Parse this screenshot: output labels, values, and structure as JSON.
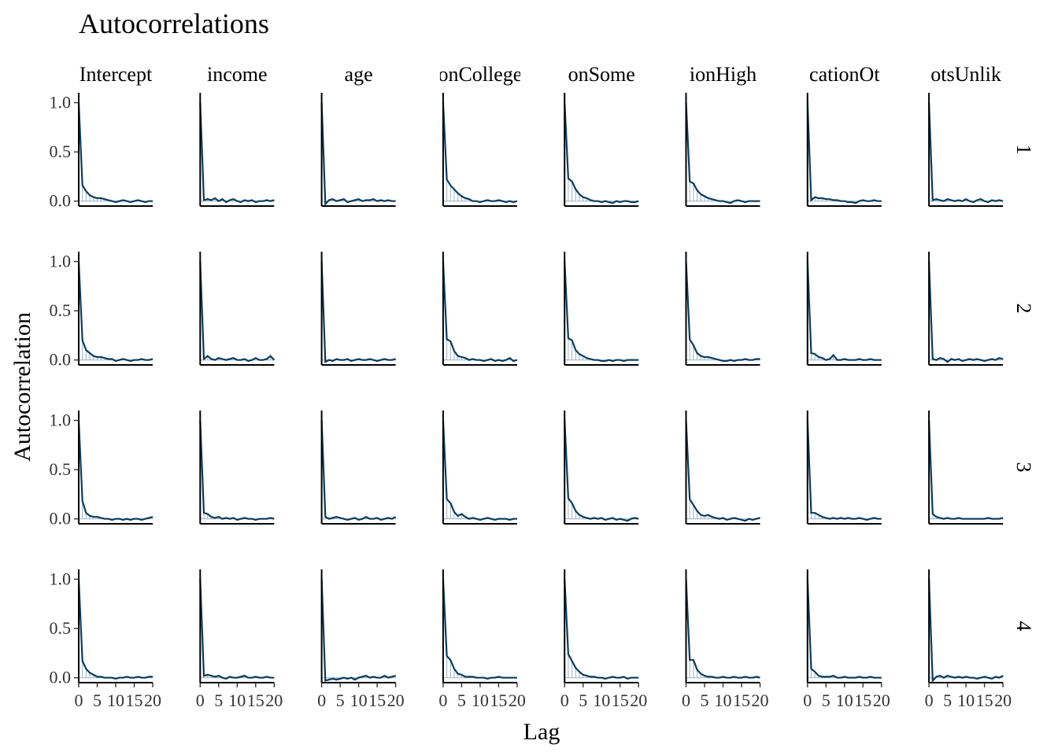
{
  "chart_data": {
    "type": "line",
    "title": "Autocorrelations",
    "xlabel": "Lag",
    "ylabel": "Autocorrelation",
    "xlim": [
      0,
      20
    ],
    "ylim": [
      -0.05,
      1.1
    ],
    "x_ticks": [
      0,
      5,
      10,
      15,
      20
    ],
    "x_tick_labels": [
      "0",
      "5",
      "10",
      "15",
      "20"
    ],
    "y_ticks": [
      0.0,
      0.5,
      1.0
    ],
    "y_tick_labels": [
      "0.0",
      "0.5",
      "1.0"
    ],
    "column_strips": [
      "Intercept",
      "income",
      "age",
      "onCollege",
      "onSome",
      "ionHigh",
      "cationOt",
      "otsUnlik"
    ],
    "row_strips": [
      "1",
      "2",
      "3",
      "4"
    ],
    "lags": [
      0,
      1,
      2,
      3,
      4,
      5,
      6,
      7,
      8,
      9,
      10,
      11,
      12,
      13,
      14,
      15,
      16,
      17,
      18,
      19,
      20
    ],
    "bar_color": "#9bb3c9",
    "line_color": "#0b3c5d",
    "panels": [
      [
        {
          "values": [
            1.0,
            0.16,
            0.1,
            0.06,
            0.04,
            0.03,
            0.03,
            0.02,
            0.01,
            0.0,
            -0.01,
            0.0,
            0.01,
            0.0,
            -0.01,
            0.0,
            0.01,
            0.0,
            -0.01,
            0.0,
            0.0
          ]
        },
        {
          "values": [
            1.0,
            0.01,
            0.02,
            0.01,
            0.03,
            0.0,
            0.02,
            -0.01,
            0.01,
            0.02,
            0.0,
            -0.01,
            0.01,
            0.0,
            0.01,
            -0.01,
            0.0,
            0.0,
            0.01,
            0.0,
            0.01
          ]
        },
        {
          "values": [
            1.0,
            -0.03,
            0.01,
            0.02,
            0.0,
            0.01,
            0.02,
            -0.01,
            0.0,
            0.01,
            0.02,
            0.0,
            0.01,
            0.01,
            0.02,
            0.0,
            0.01,
            0.0,
            0.01,
            0.0,
            0.0
          ]
        },
        {
          "values": [
            1.0,
            0.22,
            0.16,
            0.12,
            0.08,
            0.05,
            0.03,
            0.02,
            0.0,
            0.0,
            -0.01,
            0.0,
            0.01,
            0.0,
            0.0,
            0.01,
            0.0,
            -0.01,
            0.0,
            -0.01,
            0.0
          ]
        },
        {
          "values": [
            1.0,
            0.23,
            0.2,
            0.12,
            0.07,
            0.04,
            0.03,
            0.01,
            0.0,
            0.0,
            -0.01,
            0.0,
            -0.01,
            -0.02,
            0.0,
            -0.01,
            0.0,
            0.0,
            -0.01,
            -0.01,
            0.0
          ]
        },
        {
          "values": [
            1.0,
            0.2,
            0.18,
            0.11,
            0.07,
            0.05,
            0.03,
            0.02,
            0.01,
            0.0,
            0.0,
            -0.01,
            -0.02,
            0.0,
            0.01,
            0.0,
            -0.01,
            0.0,
            0.0,
            0.0,
            0.0
          ]
        },
        {
          "values": [
            1.0,
            0.01,
            0.04,
            0.03,
            0.03,
            0.02,
            0.02,
            0.01,
            0.01,
            0.0,
            0.0,
            -0.01,
            -0.01,
            -0.02,
            0.0,
            0.01,
            0.0,
            0.0,
            0.01,
            0.0,
            0.0
          ]
        },
        {
          "values": [
            1.0,
            0.01,
            0.02,
            0.01,
            0.0,
            0.02,
            0.01,
            0.0,
            0.01,
            0.0,
            0.02,
            0.0,
            -0.01,
            0.01,
            0.02,
            0.0,
            -0.01,
            0.01,
            0.0,
            0.01,
            0.0
          ]
        }
      ],
      [
        {
          "values": [
            1.0,
            0.2,
            0.1,
            0.07,
            0.04,
            0.03,
            0.03,
            0.02,
            0.01,
            0.01,
            -0.01,
            0.0,
            0.01,
            0.0,
            -0.01,
            0.0,
            0.0,
            0.01,
            0.0,
            0.0,
            0.01
          ]
        },
        {
          "values": [
            1.0,
            0.01,
            0.04,
            0.01,
            0.0,
            0.02,
            0.01,
            0.0,
            0.01,
            0.02,
            0.0,
            0.0,
            0.01,
            -0.01,
            0.0,
            0.02,
            0.0,
            0.0,
            0.01,
            0.04,
            0.0
          ]
        },
        {
          "values": [
            1.0,
            -0.02,
            0.0,
            -0.01,
            0.01,
            0.0,
            0.0,
            0.01,
            -0.01,
            0.0,
            0.01,
            0.0,
            0.0,
            0.01,
            0.0,
            -0.01,
            0.0,
            0.01,
            0.0,
            0.0,
            0.01
          ]
        },
        {
          "values": [
            1.0,
            0.21,
            0.19,
            0.09,
            0.04,
            0.03,
            0.02,
            0.0,
            0.01,
            0.0,
            0.0,
            -0.01,
            0.0,
            0.01,
            -0.01,
            0.0,
            -0.01,
            0.0,
            0.02,
            -0.01,
            0.0
          ]
        },
        {
          "values": [
            1.0,
            0.22,
            0.2,
            0.1,
            0.06,
            0.04,
            0.02,
            0.01,
            0.0,
            0.0,
            -0.01,
            -0.01,
            0.0,
            -0.01,
            0.0,
            0.0,
            -0.01,
            0.0,
            0.0,
            0.0,
            0.0
          ]
        },
        {
          "values": [
            1.0,
            0.21,
            0.15,
            0.07,
            0.04,
            0.03,
            0.03,
            0.02,
            0.01,
            0.0,
            -0.01,
            -0.01,
            0.0,
            -0.01,
            0.0,
            0.0,
            0.01,
            0.0,
            0.0,
            0.01,
            0.01
          ]
        },
        {
          "values": [
            1.0,
            0.07,
            0.06,
            0.03,
            0.02,
            0.0,
            0.01,
            0.05,
            0.0,
            0.0,
            0.01,
            0.0,
            0.0,
            0.0,
            0.01,
            0.0,
            0.0,
            0.01,
            0.0,
            0.0,
            0.0
          ]
        },
        {
          "values": [
            1.0,
            0.01,
            0.0,
            0.02,
            0.01,
            -0.02,
            0.01,
            0.0,
            0.01,
            -0.01,
            0.0,
            0.01,
            0.0,
            0.01,
            0.0,
            -0.01,
            0.0,
            0.01,
            0.0,
            0.02,
            0.01
          ]
        }
      ],
      [
        {
          "values": [
            1.0,
            0.18,
            0.06,
            0.03,
            0.02,
            0.02,
            0.01,
            0.0,
            0.0,
            -0.01,
            0.0,
            0.0,
            -0.01,
            0.0,
            -0.01,
            0.0,
            0.0,
            -0.01,
            0.0,
            0.01,
            0.02
          ]
        },
        {
          "values": [
            1.0,
            0.06,
            0.05,
            0.02,
            0.01,
            0.02,
            0.0,
            0.01,
            0.0,
            0.01,
            -0.01,
            0.0,
            0.01,
            0.0,
            0.0,
            -0.01,
            0.0,
            0.0,
            0.0,
            0.01,
            0.0
          ]
        },
        {
          "values": [
            1.0,
            0.02,
            0.0,
            0.01,
            0.02,
            0.01,
            0.0,
            -0.01,
            0.0,
            0.01,
            -0.01,
            0.0,
            0.02,
            0.0,
            0.0,
            0.01,
            -0.01,
            0.0,
            0.01,
            0.0,
            0.02
          ]
        },
        {
          "values": [
            1.0,
            0.2,
            0.16,
            0.07,
            0.03,
            0.05,
            0.02,
            0.0,
            0.01,
            0.0,
            -0.01,
            0.0,
            0.01,
            0.0,
            -0.01,
            0.0,
            0.0,
            0.0,
            -0.01,
            0.0,
            0.0
          ]
        },
        {
          "values": [
            1.0,
            0.21,
            0.16,
            0.08,
            0.04,
            0.02,
            0.01,
            0.0,
            0.01,
            0.0,
            0.01,
            -0.01,
            0.0,
            0.01,
            -0.01,
            0.0,
            -0.01,
            -0.02,
            0.0,
            0.01,
            0.0
          ]
        },
        {
          "values": [
            1.0,
            0.2,
            0.14,
            0.08,
            0.04,
            0.03,
            0.04,
            0.02,
            0.01,
            0.0,
            0.01,
            -0.01,
            0.0,
            0.01,
            0.0,
            -0.01,
            -0.02,
            0.0,
            -0.01,
            0.0,
            0.01
          ]
        },
        {
          "values": [
            1.0,
            0.06,
            0.06,
            0.04,
            0.02,
            0.01,
            0.0,
            0.01,
            0.0,
            0.01,
            0.0,
            0.01,
            0.0,
            0.0,
            0.01,
            0.0,
            -0.01,
            0.0,
            0.01,
            0.0,
            0.0
          ]
        },
        {
          "values": [
            1.0,
            0.05,
            0.02,
            0.01,
            0.0,
            0.01,
            0.0,
            0.0,
            0.01,
            0.0,
            0.0,
            0.0,
            0.0,
            0.0,
            0.0,
            0.0,
            0.01,
            0.0,
            0.0,
            0.0,
            0.01
          ]
        }
      ],
      [
        {
          "values": [
            1.0,
            0.17,
            0.09,
            0.05,
            0.03,
            0.01,
            0.01,
            0.0,
            0.0,
            0.0,
            -0.01,
            0.0,
            0.0,
            0.01,
            0.0,
            0.0,
            0.01,
            0.0,
            0.0,
            0.01,
            0.01
          ]
        },
        {
          "values": [
            1.0,
            0.02,
            0.03,
            0.02,
            0.01,
            0.02,
            0.0,
            -0.01,
            0.01,
            0.0,
            0.0,
            0.01,
            0.02,
            0.0,
            0.0,
            0.01,
            0.0,
            0.0,
            0.01,
            0.0,
            0.0
          ]
        },
        {
          "values": [
            1.0,
            -0.03,
            -0.02,
            -0.01,
            -0.02,
            -0.01,
            0.0,
            -0.01,
            0.0,
            -0.02,
            0.0,
            0.01,
            0.02,
            0.0,
            0.01,
            0.0,
            0.0,
            0.02,
            0.0,
            0.01,
            0.02
          ]
        },
        {
          "values": [
            1.0,
            0.22,
            0.18,
            0.09,
            0.04,
            0.03,
            0.01,
            0.01,
            0.01,
            0.0,
            0.0,
            0.0,
            -0.01,
            0.0,
            0.0,
            0.01,
            0.0,
            0.0,
            0.0,
            0.0,
            0.0
          ]
        },
        {
          "values": [
            1.0,
            0.24,
            0.17,
            0.1,
            0.06,
            0.03,
            0.02,
            0.01,
            0.01,
            0.0,
            0.0,
            -0.01,
            0.0,
            0.01,
            0.0,
            0.0,
            0.01,
            -0.01,
            0.0,
            0.0,
            0.0
          ]
        },
        {
          "values": [
            1.0,
            0.18,
            0.18,
            0.08,
            0.04,
            0.02,
            0.01,
            0.01,
            0.0,
            0.0,
            0.01,
            0.0,
            0.0,
            0.01,
            0.0,
            0.0,
            0.01,
            0.0,
            0.0,
            0.01,
            0.0
          ]
        },
        {
          "values": [
            1.0,
            0.09,
            0.06,
            0.02,
            0.01,
            0.01,
            0.01,
            0.02,
            0.0,
            0.0,
            0.01,
            0.0,
            0.0,
            0.0,
            0.01,
            0.0,
            0.0,
            0.01,
            0.0,
            0.0,
            0.0
          ]
        },
        {
          "values": [
            1.0,
            -0.03,
            0.01,
            0.02,
            0.0,
            0.02,
            0.01,
            0.0,
            0.01,
            0.0,
            0.01,
            0.0,
            0.0,
            -0.01,
            0.0,
            0.01,
            0.0,
            -0.01,
            0.01,
            0.0,
            0.02
          ]
        }
      ]
    ]
  }
}
